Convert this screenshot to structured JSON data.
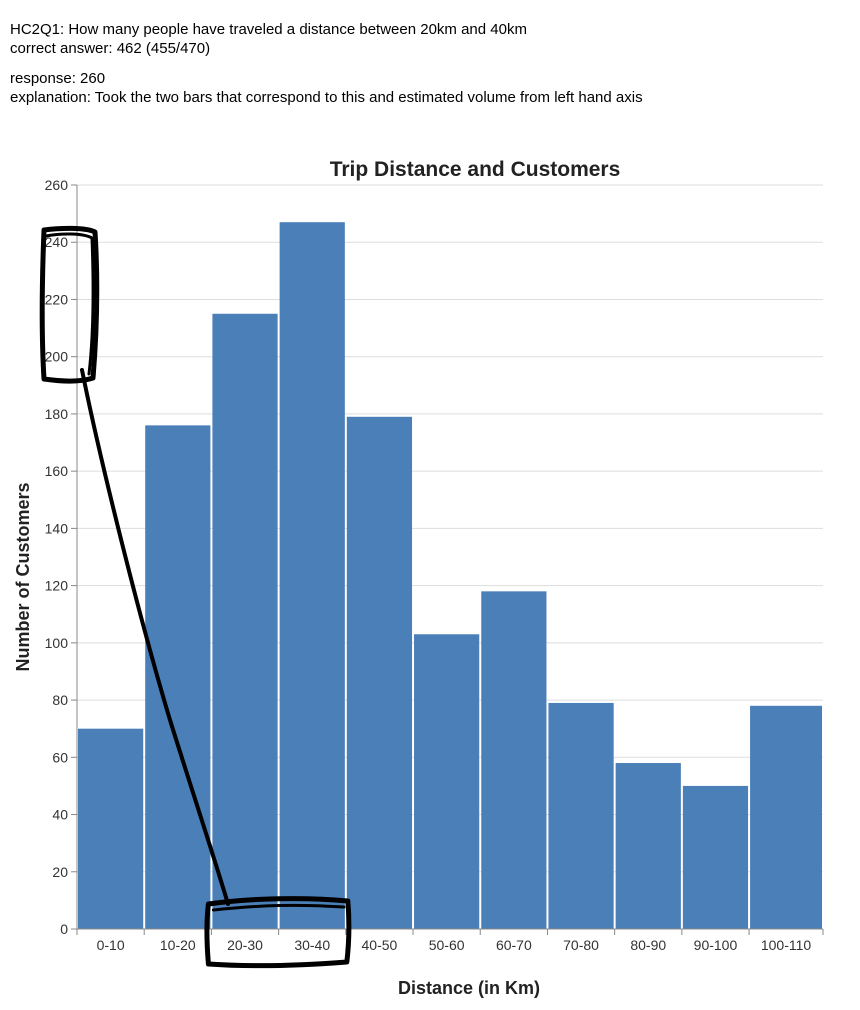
{
  "header": {
    "question": "HC2Q1: How many people have traveled a distance between 20km and 40km",
    "correct_answer": "correct answer: 462 (455/470)",
    "response": "response: 260",
    "explanation": "explanation: Took the two bars that correspond to this and estimated volume from left hand axis"
  },
  "chart_data": {
    "type": "bar",
    "title": "Trip Distance and Customers",
    "xlabel": "Distance (in Km)",
    "ylabel": "Number of Customers",
    "categories": [
      "0-10",
      "10-20",
      "20-30",
      "30-40",
      "40-50",
      "50-60",
      "60-70",
      "70-80",
      "80-90",
      "90-100",
      "100-110"
    ],
    "values": [
      70,
      176,
      215,
      247,
      179,
      103,
      118,
      79,
      58,
      50,
      78
    ],
    "bin_widths": [
      10,
      10,
      10,
      10,
      10,
      10,
      10,
      10,
      10,
      10,
      11
    ],
    "ylim": [
      0,
      260
    ],
    "yticks": [
      0,
      20,
      40,
      60,
      80,
      100,
      120,
      140,
      160,
      180,
      200,
      220,
      240,
      260
    ],
    "grid": true,
    "bar_color": "#4a7fb8",
    "annotation_color": "#000000"
  }
}
